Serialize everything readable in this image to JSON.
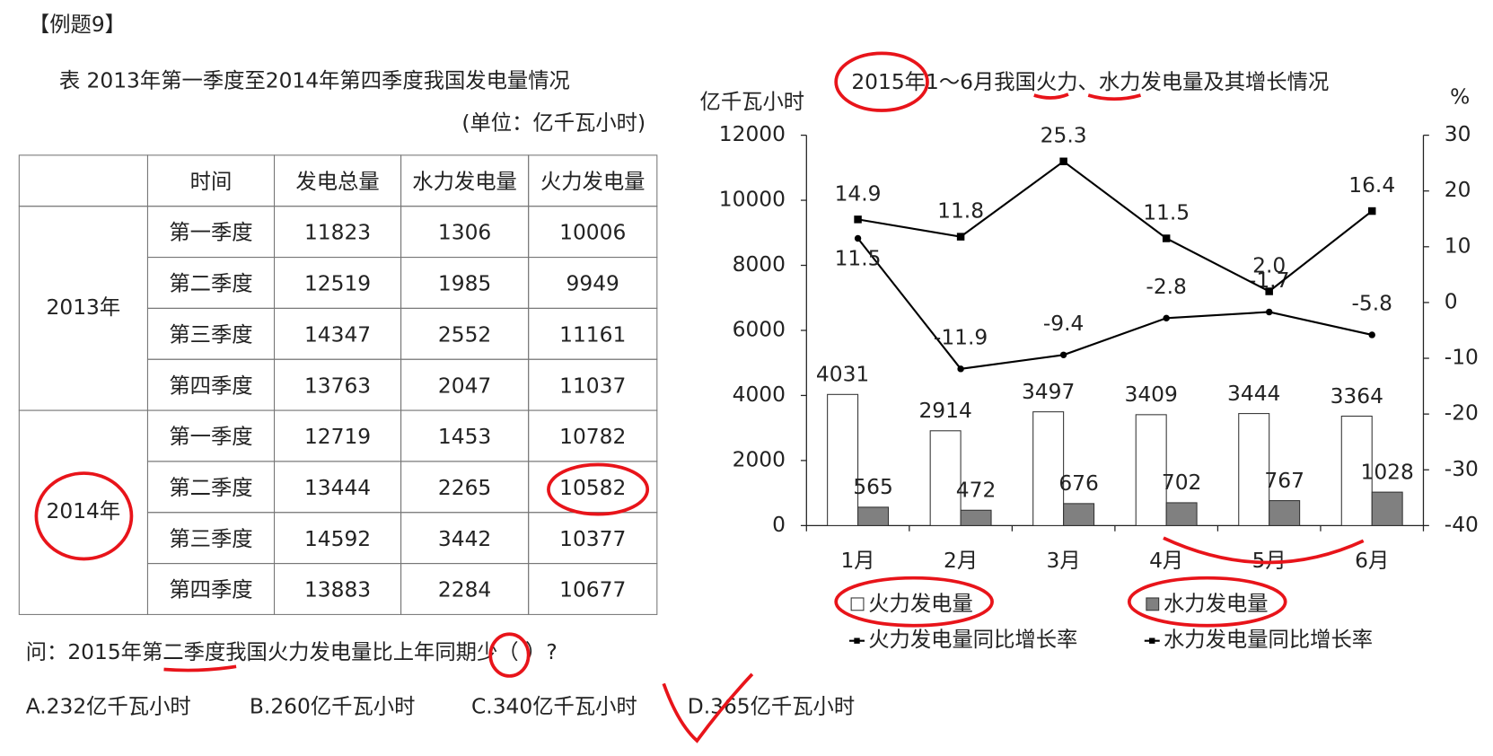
{
  "header": {
    "label": "【例题9】"
  },
  "table": {
    "title": "表  2013年第一季度至2014年第四季度我国发电量情况",
    "unit": "(单位：亿千瓦小时)",
    "columns": [
      "时间",
      "发电总量",
      "水力发电量",
      "火力发电量"
    ],
    "groups": [
      {
        "year": "2013年",
        "rows": [
          [
            "第一季度",
            11823,
            1306,
            10006
          ],
          [
            "第二季度",
            12519,
            1985,
            9949
          ],
          [
            "第三季度",
            14347,
            2552,
            11161
          ],
          [
            "第四季度",
            13763,
            2047,
            11037
          ]
        ]
      },
      {
        "year": "2014年",
        "rows": [
          [
            "第一季度",
            12719,
            1453,
            10782
          ],
          [
            "第二季度",
            13444,
            2265,
            10582
          ],
          [
            "第三季度",
            14592,
            3442,
            10377
          ],
          [
            "第四季度",
            13883,
            2284,
            10677
          ]
        ]
      }
    ]
  },
  "chart_data": {
    "type": "bar",
    "title": "2015年1～6月我国火力、水力发电量及其增长情况",
    "y_label": "亿千瓦小时",
    "y2_label": "%",
    "categories": [
      "1月",
      "2月",
      "3月",
      "4月",
      "5月",
      "6月"
    ],
    "series": [
      {
        "name": "火力发电量",
        "type": "bar",
        "color": "#ffffff",
        "values": [
          4031,
          2914,
          3497,
          3409,
          3444,
          3364
        ]
      },
      {
        "name": "水力发电量",
        "type": "bar",
        "color": "#808080",
        "values": [
          565,
          472,
          676,
          702,
          767,
          1028
        ]
      },
      {
        "name": "火力发电量同比增长率",
        "type": "line",
        "axis": "y2",
        "color": "#000000",
        "values": [
          11.5,
          -11.9,
          -9.4,
          -2.8,
          -1.7,
          -5.8
        ]
      },
      {
        "name": "水力发电量同比增长率",
        "type": "line",
        "axis": "y2",
        "color": "#000000",
        "values": [
          14.9,
          11.8,
          25.3,
          11.5,
          2.0,
          16.4
        ],
        "value_labels": [
          "14.9",
          "11.8",
          "25.3",
          "11.5",
          "2.0",
          "16.4"
        ]
      }
    ],
    "ylim": [
      0,
      12000
    ],
    "yticks": [
      0,
      2000,
      4000,
      6000,
      8000,
      10000,
      12000
    ],
    "y2lim": [
      -40,
      30
    ],
    "y2ticks": [
      -40,
      -30,
      -20,
      -10,
      0,
      10,
      20,
      30
    ]
  },
  "question": "问：2015年第二季度我国火力发电量比上年同期少（  ）?",
  "options": [
    "A.232亿千瓦小时",
    "B.260亿千瓦小时",
    "C.340亿千瓦小时",
    "D.365亿千瓦小时"
  ]
}
